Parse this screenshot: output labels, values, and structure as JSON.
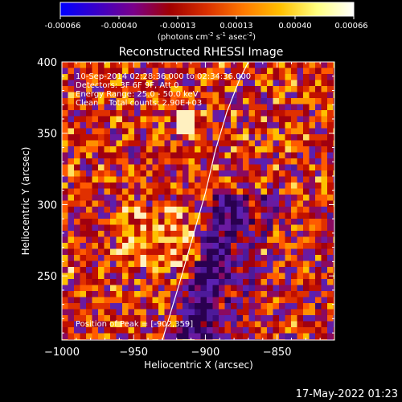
{
  "colorbar": {
    "ticks": [
      "-0.00066",
      "-0.00040",
      "-0.00013",
      "0.00013",
      "0.00040",
      "0.00066"
    ],
    "unit_main": "(photons cm",
    "unit_sup1": "-2",
    "unit_mid": " s",
    "unit_sup2": "-1",
    "unit_end": " asec",
    "unit_sup3": "-2",
    "unit_close": ")",
    "stops": [
      "#0000ff",
      "#3a00c8",
      "#7a008a",
      "#a10000",
      "#d93000",
      "#ff7a00",
      "#ffc000",
      "#ffff80",
      "#ffffff"
    ]
  },
  "plot": {
    "title": "Reconstructed RHESSI Image",
    "xlabel": "Heliocentric X (arcsec)",
    "ylabel": "Heliocentric Y (arcsec)",
    "xlim": [
      -1000,
      -810
    ],
    "ylim": [
      205,
      400
    ],
    "xticks": [
      -1000,
      -950,
      -900,
      -850
    ],
    "xtick_labels": [
      "−1000",
      "−950",
      "−900",
      "−850"
    ],
    "yticks": [
      250,
      300,
      350,
      400
    ],
    "ytick_labels": [
      "250",
      "300",
      "350",
      "400"
    ],
    "info": [
      "10-Sep-2014 02:28:36.000 to 02:34:36.000",
      "Detectors: 3F 6F 9F, Att 0",
      "Energy Range: 25.0 - 50.0 keV",
      "Clean    Total counts: 2.90E+03"
    ],
    "peak": "Position of Peak = [-902,359]",
    "limb": [
      [
        -930,
        205
      ],
      [
        -918,
        245
      ],
      [
        -908,
        280
      ],
      [
        -900,
        308
      ],
      [
        -893,
        338
      ],
      [
        -885,
        365
      ],
      [
        -876,
        388
      ],
      [
        -870,
        400
      ]
    ]
  },
  "timestamp": "17-May-2022 01:23"
}
